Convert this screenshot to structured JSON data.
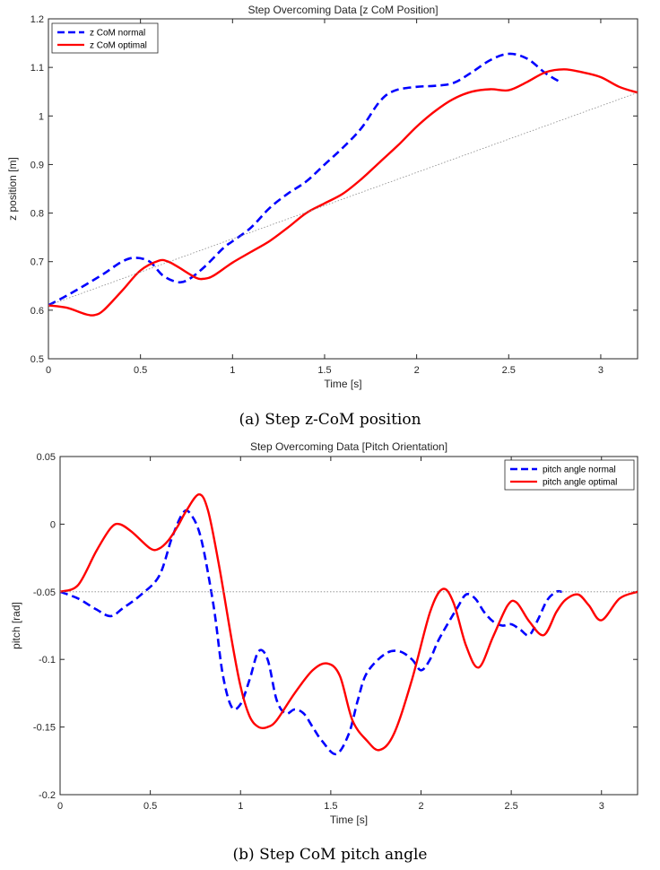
{
  "chart_data": [
    {
      "type": "line",
      "title": "Step Overcoming Data [z CoM Position]",
      "xlabel": "Time [s]",
      "ylabel": "z position [m]",
      "xlim": [
        0,
        3.2
      ],
      "ylim": [
        0.5,
        1.2
      ],
      "xticks": [
        "0",
        "0.5",
        "1",
        "1.5",
        "2",
        "2.5",
        "3"
      ],
      "yticks": [
        "0.5",
        "0.6",
        "0.7",
        "0.8",
        "0.9",
        "1",
        "1.1",
        "1.2"
      ],
      "legend_position": "top-left",
      "caption": "(a) Step z-CoM position",
      "series": [
        {
          "name": "z CoM normal",
          "color": "#0000ff",
          "style": "dashed",
          "x": [
            0,
            0.1,
            0.2,
            0.3,
            0.4,
            0.47,
            0.55,
            0.62,
            0.7,
            0.76,
            0.85,
            0.95,
            1.0,
            1.1,
            1.2,
            1.3,
            1.4,
            1.5,
            1.6,
            1.7,
            1.8,
            1.88,
            2.0,
            2.1,
            2.2,
            2.3,
            2.4,
            2.5,
            2.6,
            2.7,
            2.78
          ],
          "y": [
            0.61,
            0.63,
            0.652,
            0.675,
            0.7,
            0.708,
            0.7,
            0.672,
            0.658,
            0.663,
            0.69,
            0.728,
            0.742,
            0.77,
            0.81,
            0.84,
            0.865,
            0.9,
            0.935,
            0.975,
            1.03,
            1.052,
            1.06,
            1.062,
            1.068,
            1.09,
            1.115,
            1.128,
            1.118,
            1.088,
            1.07
          ]
        },
        {
          "name": "z CoM optimal",
          "color": "#ff0000",
          "style": "solid",
          "x": [
            0,
            0.1,
            0.2,
            0.25,
            0.3,
            0.4,
            0.5,
            0.6,
            0.65,
            0.7,
            0.8,
            0.85,
            0.9,
            1.0,
            1.1,
            1.2,
            1.3,
            1.4,
            1.5,
            1.6,
            1.7,
            1.8,
            1.9,
            2.0,
            2.1,
            2.2,
            2.3,
            2.4,
            2.5,
            2.6,
            2.7,
            2.8,
            2.9,
            3.0,
            3.1,
            3.2
          ],
          "y": [
            0.61,
            0.605,
            0.592,
            0.59,
            0.6,
            0.64,
            0.682,
            0.702,
            0.7,
            0.69,
            0.667,
            0.665,
            0.672,
            0.698,
            0.72,
            0.742,
            0.77,
            0.8,
            0.82,
            0.84,
            0.87,
            0.905,
            0.94,
            0.978,
            1.01,
            1.035,
            1.05,
            1.055,
            1.053,
            1.07,
            1.09,
            1.096,
            1.09,
            1.08,
            1.06,
            1.048
          ]
        },
        {
          "name": "",
          "color": "#888888",
          "style": "dotted",
          "x": [
            0,
            3.2
          ],
          "y": [
            0.61,
            1.048
          ]
        }
      ]
    },
    {
      "type": "line",
      "title": "Step Overcoming Data [Pitch Orientation]",
      "xlabel": "Time [s]",
      "ylabel": "pitch [rad]",
      "xlim": [
        0,
        3.2
      ],
      "ylim": [
        -0.2,
        0.05
      ],
      "xticks": [
        "0",
        "0.5",
        "1",
        "1.5",
        "2",
        "2.5",
        "3"
      ],
      "yticks": [
        "-0.2",
        "-0.15",
        "-0.1",
        "-0.05",
        "0",
        "0.05"
      ],
      "legend_position": "top-right",
      "caption": "(b) Step CoM pitch angle",
      "series": [
        {
          "name": "pitch angle normal",
          "color": "#0000ff",
          "style": "dashed",
          "x": [
            0,
            0.1,
            0.2,
            0.28,
            0.35,
            0.45,
            0.55,
            0.62,
            0.68,
            0.72,
            0.78,
            0.85,
            0.9,
            0.95,
            1.0,
            1.05,
            1.1,
            1.15,
            1.2,
            1.25,
            1.3,
            1.35,
            1.4,
            1.45,
            1.53,
            1.6,
            1.65,
            1.7,
            1.8,
            1.88,
            1.95,
            2.0,
            2.05,
            2.1,
            2.2,
            2.25,
            2.3,
            2.35,
            2.4,
            2.45,
            2.5,
            2.55,
            2.6,
            2.65,
            2.7,
            2.75,
            2.78
          ],
          "y": [
            -0.05,
            -0.055,
            -0.063,
            -0.068,
            -0.062,
            -0.052,
            -0.038,
            -0.01,
            0.008,
            0.008,
            -0.01,
            -0.06,
            -0.11,
            -0.135,
            -0.133,
            -0.115,
            -0.094,
            -0.1,
            -0.13,
            -0.14,
            -0.137,
            -0.14,
            -0.15,
            -0.16,
            -0.17,
            -0.155,
            -0.13,
            -0.11,
            -0.096,
            -0.094,
            -0.1,
            -0.108,
            -0.1,
            -0.085,
            -0.062,
            -0.052,
            -0.055,
            -0.065,
            -0.072,
            -0.075,
            -0.074,
            -0.078,
            -0.082,
            -0.07,
            -0.056,
            -0.05,
            -0.05
          ]
        },
        {
          "name": "pitch angle optimal",
          "color": "#ff0000",
          "style": "solid",
          "x": [
            0,
            0.1,
            0.2,
            0.28,
            0.33,
            0.4,
            0.5,
            0.55,
            0.6,
            0.65,
            0.7,
            0.77,
            0.82,
            0.88,
            0.95,
            1.0,
            1.05,
            1.1,
            1.15,
            1.2,
            1.3,
            1.4,
            1.48,
            1.55,
            1.62,
            1.7,
            1.77,
            1.85,
            1.95,
            2.05,
            2.12,
            2.18,
            2.25,
            2.32,
            2.4,
            2.48,
            2.53,
            2.6,
            2.68,
            2.75,
            2.8,
            2.87,
            2.93,
            3.0,
            3.1,
            3.2
          ],
          "y": [
            -0.05,
            -0.045,
            -0.02,
            -0.003,
            0.0,
            -0.006,
            -0.018,
            -0.018,
            -0.012,
            -0.002,
            0.01,
            0.022,
            0.01,
            -0.03,
            -0.085,
            -0.12,
            -0.142,
            -0.15,
            -0.15,
            -0.145,
            -0.125,
            -0.108,
            -0.103,
            -0.112,
            -0.145,
            -0.16,
            -0.167,
            -0.155,
            -0.115,
            -0.065,
            -0.048,
            -0.058,
            -0.09,
            -0.106,
            -0.083,
            -0.06,
            -0.058,
            -0.072,
            -0.082,
            -0.065,
            -0.056,
            -0.052,
            -0.06,
            -0.071,
            -0.055,
            -0.05
          ]
        },
        {
          "name": "",
          "color": "#888888",
          "style": "dotted",
          "x": [
            0,
            3.2
          ],
          "y": [
            -0.05,
            -0.05
          ]
        }
      ]
    }
  ]
}
